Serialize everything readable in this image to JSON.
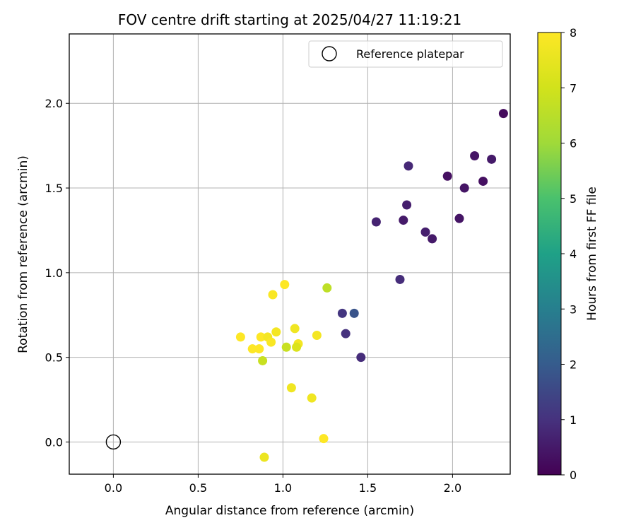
{
  "chart_data": {
    "type": "scatter",
    "title": "FOV centre drift starting at 2025/04/27 11:19:21",
    "xlabel": "Angular distance from reference (arcmin)",
    "ylabel": "Rotation from reference (arcmin)",
    "xlim": [
      -0.26,
      2.34
    ],
    "ylim": [
      -0.19,
      2.41
    ],
    "xticks": [
      "0.0",
      "0.5",
      "1.0",
      "1.5",
      "2.0"
    ],
    "yticks": [
      "0.0",
      "0.5",
      "1.0",
      "1.5",
      "2.0"
    ],
    "grid": true,
    "legend_position": "top-right",
    "legend": [
      {
        "label": "Reference platepar",
        "marker": "open-circle"
      }
    ],
    "reference_point": {
      "x": 0.0,
      "y": 0.0
    },
    "colorbar": {
      "label": "Hours from first FF file",
      "min": 0,
      "max": 8,
      "ticks": [
        "0",
        "1",
        "2",
        "3",
        "4",
        "5",
        "6",
        "7",
        "8"
      ],
      "colormap": "viridis"
    },
    "points": [
      {
        "x": 2.3,
        "y": 1.94,
        "c": 0.2
      },
      {
        "x": 2.13,
        "y": 1.69,
        "c": 0.4
      },
      {
        "x": 2.23,
        "y": 1.67,
        "c": 0.5
      },
      {
        "x": 1.74,
        "y": 1.63,
        "c": 0.8
      },
      {
        "x": 1.97,
        "y": 1.57,
        "c": 0.3
      },
      {
        "x": 2.18,
        "y": 1.54,
        "c": 0.3
      },
      {
        "x": 2.07,
        "y": 1.5,
        "c": 0.4
      },
      {
        "x": 1.73,
        "y": 1.4,
        "c": 0.6
      },
      {
        "x": 2.04,
        "y": 1.32,
        "c": 0.4
      },
      {
        "x": 1.71,
        "y": 1.31,
        "c": 0.5
      },
      {
        "x": 1.55,
        "y": 1.3,
        "c": 0.7
      },
      {
        "x": 1.84,
        "y": 1.24,
        "c": 0.6
      },
      {
        "x": 1.88,
        "y": 1.2,
        "c": 0.5
      },
      {
        "x": 1.69,
        "y": 0.96,
        "c": 0.9
      },
      {
        "x": 1.42,
        "y": 0.76,
        "c": 1.8
      },
      {
        "x": 1.35,
        "y": 0.76,
        "c": 1.1
      },
      {
        "x": 1.37,
        "y": 0.64,
        "c": 1.0
      },
      {
        "x": 1.46,
        "y": 0.5,
        "c": 0.9
      },
      {
        "x": 1.26,
        "y": 0.91,
        "c": 6.6
      },
      {
        "x": 1.01,
        "y": 0.93,
        "c": 8.0
      },
      {
        "x": 0.94,
        "y": 0.87,
        "c": 7.9
      },
      {
        "x": 1.07,
        "y": 0.67,
        "c": 7.7
      },
      {
        "x": 0.96,
        "y": 0.65,
        "c": 7.8
      },
      {
        "x": 1.2,
        "y": 0.63,
        "c": 7.8
      },
      {
        "x": 0.75,
        "y": 0.62,
        "c": 8.0
      },
      {
        "x": 0.87,
        "y": 0.62,
        "c": 8.0
      },
      {
        "x": 0.91,
        "y": 0.62,
        "c": 7.8
      },
      {
        "x": 0.93,
        "y": 0.59,
        "c": 7.9
      },
      {
        "x": 1.09,
        "y": 0.58,
        "c": 7.8
      },
      {
        "x": 1.02,
        "y": 0.56,
        "c": 6.8
      },
      {
        "x": 1.08,
        "y": 0.56,
        "c": 7.2
      },
      {
        "x": 0.82,
        "y": 0.55,
        "c": 8.0
      },
      {
        "x": 0.86,
        "y": 0.55,
        "c": 8.0
      },
      {
        "x": 0.88,
        "y": 0.48,
        "c": 6.8
      },
      {
        "x": 1.05,
        "y": 0.32,
        "c": 7.7
      },
      {
        "x": 1.17,
        "y": 0.26,
        "c": 7.7
      },
      {
        "x": 1.24,
        "y": 0.02,
        "c": 8.0
      },
      {
        "x": 0.89,
        "y": -0.09,
        "c": 7.6
      }
    ]
  }
}
